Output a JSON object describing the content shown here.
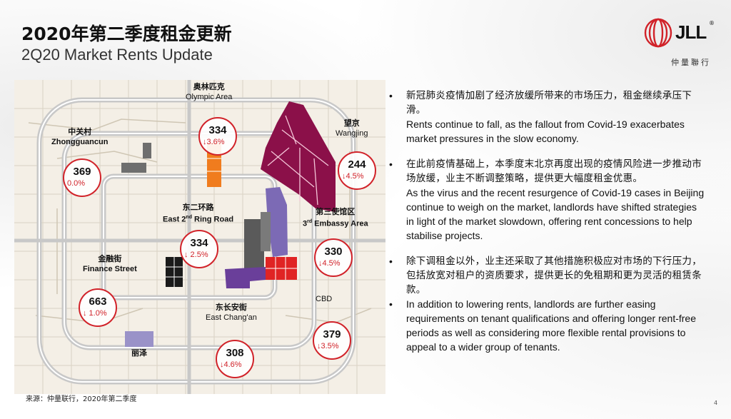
{
  "header": {
    "title_zh": "2020年第二季度租金更新",
    "title_en": "2Q20 Market Rents Update"
  },
  "logo": {
    "text": "JLL",
    "tm": "®",
    "subtitle": "仲量聯行"
  },
  "colors": {
    "accent_red": "#d12229",
    "wangjing": "#8b1049",
    "olympic": "#f07c1e",
    "embassy": "#7c6ab5",
    "cbd": "#e02424",
    "changan": "#6a3f9a",
    "finance": "#1a1a1a",
    "zhongguancun": "#6e6e6e",
    "lize": "#9a92c8"
  },
  "map": {
    "districts": [
      {
        "id": "olympic",
        "name_zh": "奥林匹克",
        "name_en": "Olympic Area",
        "rent": "334",
        "change": "↓3.6%"
      },
      {
        "id": "zhongguancun",
        "name_zh": "中关村",
        "name_en": "Zhongguancun",
        "rent": "369",
        "change": "0.0%"
      },
      {
        "id": "wangjing",
        "name_zh": "望京",
        "name_en": "Wangjing",
        "rent": "244",
        "change": "↓4.5%"
      },
      {
        "id": "east2nd",
        "name_zh": "东二环路",
        "name_en_pre": "East 2",
        "name_en_sup": "nd",
        "name_en_post": " Ring Road",
        "rent": "334",
        "change": "↓ 2.5%"
      },
      {
        "id": "embassy",
        "name_zh": "第三使馆区",
        "name_en_pre": "3",
        "name_en_sup": "rd",
        "name_en_post": " Embassy Area",
        "rent": "330",
        "change": "↓4.5%"
      },
      {
        "id": "finance",
        "name_zh": "金融街",
        "name_en": "Finance Street",
        "rent": "663",
        "change": "↓ 1.0%"
      },
      {
        "id": "changan",
        "name_zh": "东长安街",
        "name_en": "East Chang'an",
        "rent": "308",
        "change": "↓4.6%"
      },
      {
        "id": "cbd",
        "name_zh": "",
        "name_en": "CBD",
        "rent": "379",
        "change": "↓3.5%"
      },
      {
        "id": "lize",
        "name_zh": "丽泽",
        "name_en": ""
      }
    ]
  },
  "bullets": [
    {
      "zh": "新冠肺炎疫情加剧了经济放缓所带来的市场压力，租金继续承压下滑。",
      "en": "Rents continue to fall, as the fallout from Covid-19 exacerbates market pressures in the slow economy."
    },
    {
      "zh": "在此前疫情基础上，本季度末北京再度出现的疫情风险进一步推动市场放缓，业主不断调整策略，提供更大幅度租金优惠。",
      "en": "As the virus and the recent resurgence of Covid-19 cases in Beijing continue to weigh on the market, landlords have shifted strategies in light of the market slowdown, offering rent concessions to help stabilise projects."
    },
    {
      "zh": "除下调租金以外，业主还采取了其他措施积极应对市场的下行压力，包括放宽对租户的资质要求，提供更长的免租期和更为灵活的租赁条款。",
      "en": ""
    },
    {
      "zh": "",
      "en": "In addition to lowering rents, landlords are further easing requirements on tenant qualifications and offering longer rent-free periods as well as considering more flexible rental provisions to appeal to a wider group of tenants."
    }
  ],
  "bullet_symbol": "•",
  "footer": {
    "source": "来源：仲量联行，2020年第二季度",
    "page": "4"
  }
}
